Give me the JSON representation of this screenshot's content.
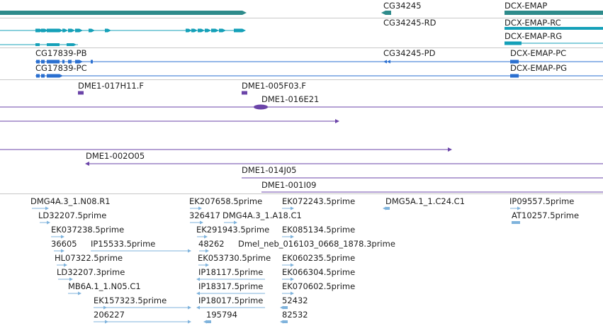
{
  "colors": {
    "gene_teal": "#2e8b8b",
    "mrna_cyan": "#14a0b8",
    "mrna_blue": "#2a6fd0",
    "clone_purple": "#6b44a8",
    "est_lightblue": "#7fb3dc",
    "separator": "#c8c8c8",
    "label": "#202020"
  },
  "tracks": {
    "gene_top": {
      "labels": {
        "cg34245": "CG34245",
        "dcx_emap": "DCX-EMAP"
      }
    },
    "mrna_cyan": {
      "labels": {
        "cg34245_rd": "CG34245-RD",
        "dcx_emap_rc": "DCX-EMAP-RC",
        "dcx_emap_rg": "DCX-EMAP-RG"
      }
    },
    "mrna_blue": {
      "labels": {
        "cg17839_pb": "CG17839-PB",
        "cg17839_pc": "CG17839-PC",
        "cg34245_pd": "CG34245-PD",
        "dcx_emap_pc": "DCX-EMAP-PC",
        "dcx_emap_pg": "DCX-EMAP-PG"
      }
    },
    "clones": {
      "labels": {
        "dme1_017h11f": "DME1-017H11.F",
        "dme1_005f03f": "DME1-005F03.F",
        "dme1_016e21": "DME1-016E21",
        "dme1_002o05": "DME1-002O05",
        "dme1_014j05": "DME1-014J05",
        "dme1_001i09": "DME1-001I09"
      }
    },
    "ests": {
      "labels": {
        "dmg4a3_1_n08_r1": "DMG4A.3_1.N08.R1",
        "ld32207_5prime": "LD32207.5prime",
        "ek037238_5prime": "EK037238.5prime",
        "n36605": "36605",
        "ip15533_5prime": "IP15533.5prime",
        "hl07322_5prime": "HL07322.5prime",
        "ld32207_3prime": "LD32207.3prime",
        "mb6a_1_1_n05_c1": "MB6A.1_1.N05.C1",
        "ek157323_5prime": "EK157323.5prime",
        "n206227": "206227",
        "ek207658_5prime": "EK207658.5prime",
        "n326417": "326417",
        "dmg4a3_1_a18_c1": "DMG4A.3_1.A18.C1",
        "ek291943_5prime": "EK291943.5prime",
        "n48262": "48262",
        "dmel_neb": "Dmel_neb_016103_0668_1878.3prime",
        "ek053730_5prime": "EK053730.5prime",
        "ip18117_5prime": "IP18117.5prime",
        "ip18317_5prime": "IP18317.5prime",
        "ip18017_5prime": "IP18017.5prime",
        "n195794": "195794",
        "ek072243_5prime": "EK072243.5prime",
        "ek085134_5prime": "EK085134.5prime",
        "ek060235_5prime": "EK060235.5prime",
        "ek066304_5prime": "EK066304.5prime",
        "ek070602_5prime": "EK070602.5prime",
        "n52432": "52432",
        "n82532": "82532",
        "dmg5a_1_1_c24_c1": "DMG5A.1_1.C24.C1",
        "ip09557_5prime": "IP09557.5prime",
        "at10257_5prime": "AT10257.5prime"
      }
    }
  }
}
